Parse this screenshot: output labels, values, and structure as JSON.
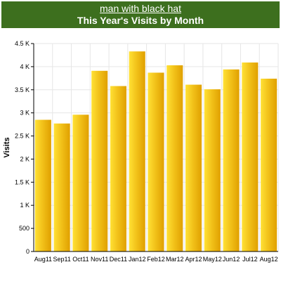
{
  "header": {
    "link_text": "man with black hat",
    "title": "This Year's Visits by Month"
  },
  "colors": {
    "header_bg": "#3d6f1e",
    "bar_light": "#ffe135",
    "bar_mid": "#f2c21a",
    "bar_dark": "#e0a000",
    "plot_bg": "#ffffff",
    "grid": "#e6e6e6"
  },
  "chart_data": {
    "type": "bar",
    "title": "This Year's Visits by Month",
    "xlabel": "",
    "ylabel": "Visits",
    "categories": [
      "Aug11",
      "Sep11",
      "Oct11",
      "Nov11",
      "Dec11",
      "Jan12",
      "Feb12",
      "Mar12",
      "Apr12",
      "May12",
      "Jun12",
      "Jul12",
      "Aug12"
    ],
    "values": [
      2850,
      2770,
      2960,
      3910,
      3580,
      4330,
      3870,
      4030,
      3610,
      3510,
      3940,
      4090,
      3740
    ],
    "ylim": [
      0,
      4500
    ],
    "yticks": [
      0,
      500,
      1000,
      1500,
      2000,
      2500,
      3000,
      3500,
      4000,
      4500
    ],
    "ytick_labels": [
      "0",
      "500",
      "1 K",
      "1.5 K",
      "2 K",
      "2.5 K",
      "3 K",
      "3.5 K",
      "4 K",
      "4.5 K"
    ],
    "grid": true,
    "legend": "none"
  }
}
